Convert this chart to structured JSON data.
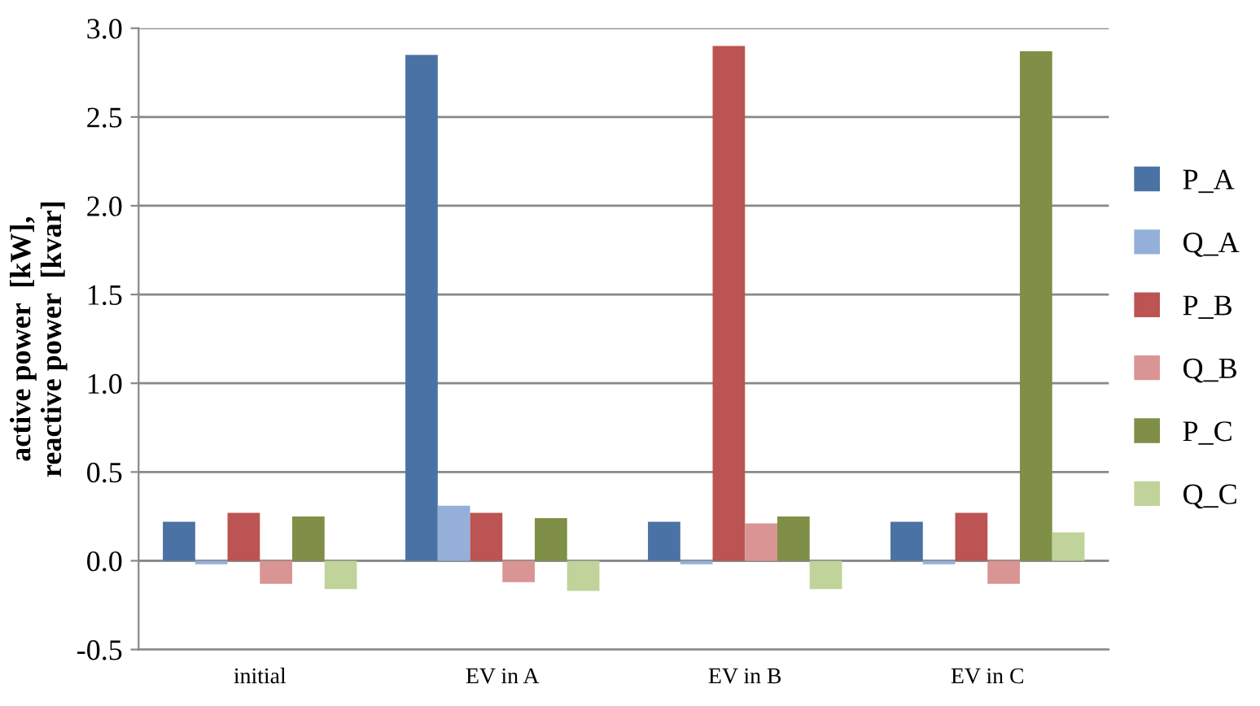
{
  "chart_data": {
    "type": "bar",
    "ylabel": "active power  [kW],\nreactive power  [kvar]",
    "categories": [
      "initial",
      "EV in A",
      "EV in B",
      "EV in C"
    ],
    "series": [
      {
        "name": "P_A",
        "color": "#4a72a4",
        "values": [
          0.22,
          2.85,
          0.22,
          0.22
        ]
      },
      {
        "name": "Q_A",
        "color": "#94b0d8",
        "values": [
          -0.02,
          0.31,
          -0.02,
          -0.02
        ]
      },
      {
        "name": "P_B",
        "color": "#bb5452",
        "values": [
          0.27,
          0.27,
          2.9,
          0.27
        ]
      },
      {
        "name": "Q_B",
        "color": "#d99593",
        "values": [
          -0.13,
          -0.12,
          0.21,
          -0.13
        ]
      },
      {
        "name": "P_C",
        "color": "#7f8f47",
        "values": [
          0.25,
          0.24,
          0.25,
          2.87
        ]
      },
      {
        "name": "Q_C",
        "color": "#c0d39a",
        "values": [
          -0.16,
          -0.17,
          -0.16,
          0.16
        ]
      }
    ],
    "ylim": [
      -0.5,
      3.0
    ],
    "yticks": [
      {
        "value": -0.5,
        "label": "-0.5"
      },
      {
        "value": 0,
        "label": "0.0"
      },
      {
        "value": 0.5,
        "label": "0.5"
      },
      {
        "value": 1.0,
        "label": "1.0"
      },
      {
        "value": 1.5,
        "label": "1.5"
      },
      {
        "value": 2.0,
        "label": "2.0"
      },
      {
        "value": 2.5,
        "label": "2.5"
      },
      {
        "value": 3.0,
        "label": "3.0"
      }
    ],
    "grid": "y",
    "legend": "right"
  }
}
